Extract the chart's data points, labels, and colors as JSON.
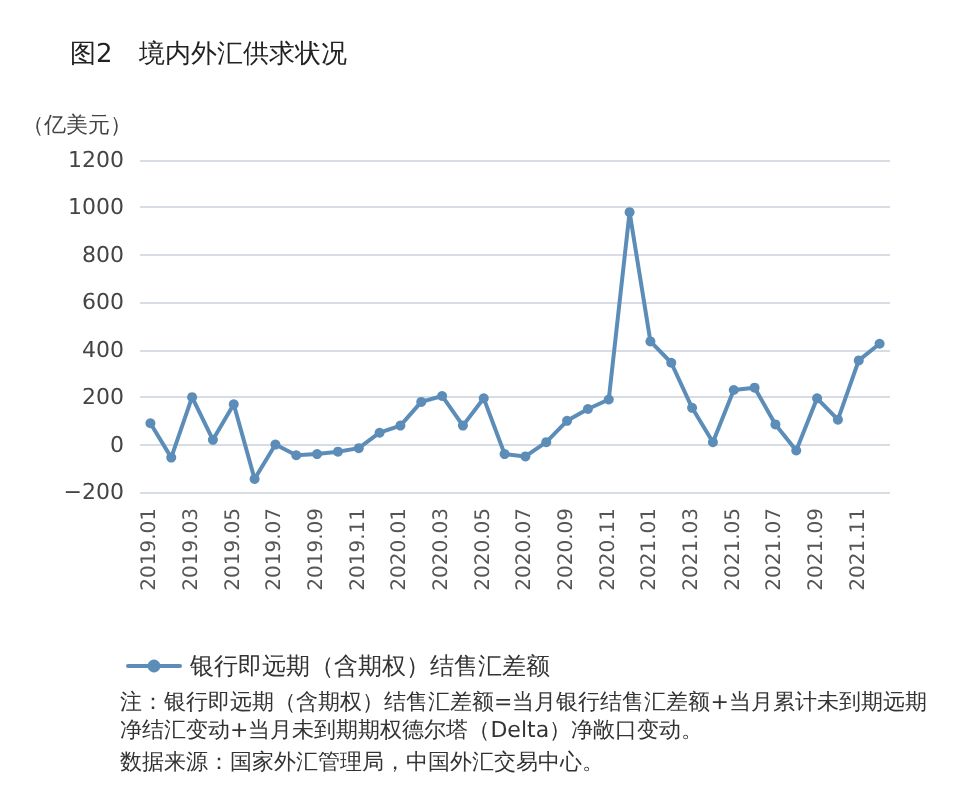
{
  "chart_data": {
    "type": "line",
    "title": "图2　境内外汇供求状况",
    "ylabel": "（亿美元）",
    "categories": [
      "2019.01",
      null,
      "2019.03",
      null,
      "2019.05",
      null,
      "2019.07",
      null,
      "2019.09",
      null,
      "2019.11",
      null,
      "2020.01",
      null,
      "2020.03",
      null,
      "2020.05",
      null,
      "2020.07",
      null,
      "2020.09",
      null,
      "2020.11",
      null,
      "2021.01",
      null,
      "2021.03",
      null,
      "2021.05",
      null,
      "2021.07",
      null,
      "2021.09",
      null,
      "2021.11",
      null
    ],
    "series": [
      {
        "name": "银行即远期（含期权）结售汇差额",
        "color": "#5b8db8",
        "values": [
          90,
          -55,
          200,
          20,
          170,
          -145,
          0,
          -45,
          -40,
          -30,
          -15,
          50,
          80,
          180,
          205,
          80,
          195,
          -40,
          -50,
          10,
          100,
          150,
          190,
          980,
          435,
          345,
          155,
          10,
          230,
          240,
          85,
          -25,
          195,
          105,
          355,
          425
        ]
      }
    ],
    "ylim": [
      -200,
      1200
    ],
    "yticks": [
      -200,
      0,
      200,
      400,
      600,
      800,
      1000,
      1200
    ],
    "grid": "y",
    "legend": "bottom left",
    "marker": "circle",
    "line_style": "solid",
    "annotations": [
      "注：银行即远期（含期权）结售汇差额=当月银行结售汇差额+当月累计未到期远期净结汇变动+当月未到期期权德尔塔（Delta）净敞口变动。",
      "数据来源：国家外汇管理局，中国外汇交易中心。"
    ]
  }
}
